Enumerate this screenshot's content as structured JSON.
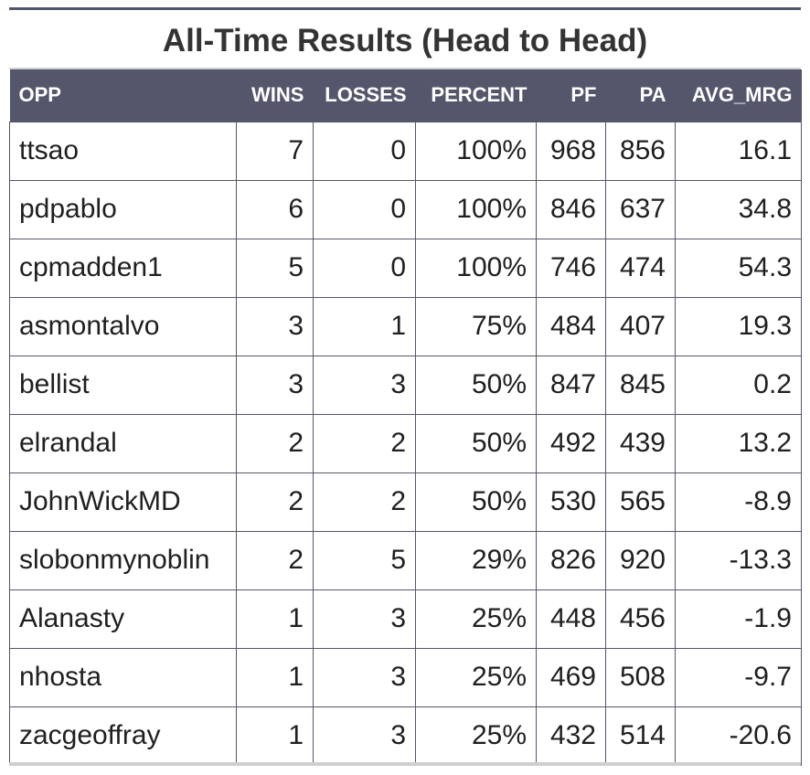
{
  "title": "All-Time Results (Head to Head)",
  "colors": {
    "header_bg": "#54566c",
    "header_text": "#ffffff",
    "border": "#54566c"
  },
  "columns": [
    "OPP",
    "WINS",
    "LOSSES",
    "PERCENT",
    "PF",
    "PA",
    "AVG_MRG"
  ],
  "rows": [
    {
      "opp": "ttsao",
      "wins": "7",
      "losses": "0",
      "percent": "100%",
      "pf": "968",
      "pa": "856",
      "avg_mrg": "16.1"
    },
    {
      "opp": "pdpablo",
      "wins": "6",
      "losses": "0",
      "percent": "100%",
      "pf": "846",
      "pa": "637",
      "avg_mrg": "34.8"
    },
    {
      "opp": "cpmadden1",
      "wins": "5",
      "losses": "0",
      "percent": "100%",
      "pf": "746",
      "pa": "474",
      "avg_mrg": "54.3"
    },
    {
      "opp": "asmontalvo",
      "wins": "3",
      "losses": "1",
      "percent": "75%",
      "pf": "484",
      "pa": "407",
      "avg_mrg": "19.3"
    },
    {
      "opp": "bellist",
      "wins": "3",
      "losses": "3",
      "percent": "50%",
      "pf": "847",
      "pa": "845",
      "avg_mrg": "0.2"
    },
    {
      "opp": "elrandal",
      "wins": "2",
      "losses": "2",
      "percent": "50%",
      "pf": "492",
      "pa": "439",
      "avg_mrg": "13.2"
    },
    {
      "opp": "JohnWickMD",
      "wins": "2",
      "losses": "2",
      "percent": "50%",
      "pf": "530",
      "pa": "565",
      "avg_mrg": "-8.9"
    },
    {
      "opp": "slobonmynoblin",
      "wins": "2",
      "losses": "5",
      "percent": "29%",
      "pf": "826",
      "pa": "920",
      "avg_mrg": "-13.3"
    },
    {
      "opp": "Alanasty",
      "wins": "1",
      "losses": "3",
      "percent": "25%",
      "pf": "448",
      "pa": "456",
      "avg_mrg": "-1.9"
    },
    {
      "opp": "nhosta",
      "wins": "1",
      "losses": "3",
      "percent": "25%",
      "pf": "469",
      "pa": "508",
      "avg_mrg": "-9.7"
    },
    {
      "opp": "zacgeoffray",
      "wins": "1",
      "losses": "3",
      "percent": "25%",
      "pf": "432",
      "pa": "514",
      "avg_mrg": "-20.6"
    }
  ]
}
